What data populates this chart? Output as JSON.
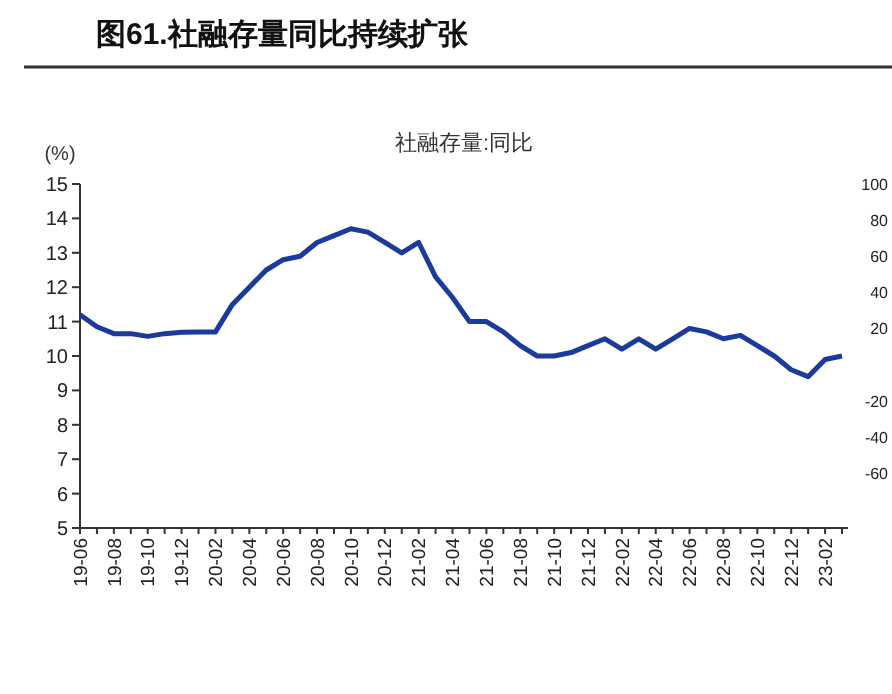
{
  "chart_data": {
    "type": "line",
    "title": "图61.社融存量同比持续扩张",
    "subtitle": "社融存量:同比",
    "ylabel": "(%)",
    "categories": [
      "19-06",
      null,
      "19-08",
      null,
      "19-10",
      null,
      "19-12",
      null,
      "20-02",
      null,
      "20-04",
      null,
      "20-06",
      null,
      "20-08",
      null,
      "20-10",
      null,
      "20-12",
      null,
      "21-02",
      null,
      "21-04",
      null,
      "21-06",
      null,
      "21-08",
      null,
      "21-10",
      null,
      "21-12",
      null,
      "22-02",
      null,
      "22-04",
      null,
      "22-06",
      null,
      "22-08",
      null,
      "22-10",
      null,
      "22-12",
      null,
      "23-02",
      null
    ],
    "series": [
      {
        "color": "#1a3a9c",
        "values": [
          11.2,
          10.85,
          10.65,
          10.65,
          10.57,
          10.65,
          10.69,
          10.7,
          10.7,
          11.5,
          12.0,
          12.5,
          12.8,
          12.9,
          13.3,
          13.5,
          13.7,
          13.6,
          13.3,
          13.0,
          13.3,
          12.3,
          11.7,
          11.0,
          11.0,
          10.7,
          10.3,
          10.0,
          10.0,
          10.1,
          10.3,
          10.5,
          10.2,
          10.5,
          10.2,
          10.5,
          10.8,
          10.7,
          10.5,
          10.6,
          10.3,
          10.0,
          9.6,
          9.4,
          9.9,
          10.0
        ]
      }
    ],
    "ylim": [
      5,
      15
    ],
    "yticks": [
      5,
      6,
      7,
      8,
      9,
      10,
      11,
      12,
      13,
      14,
      15
    ],
    "y2lim": [
      -90,
      100
    ],
    "y2ticks": [
      -60,
      -40,
      -20,
      20,
      40,
      60,
      80,
      100
    ],
    "line_style": "solid"
  }
}
